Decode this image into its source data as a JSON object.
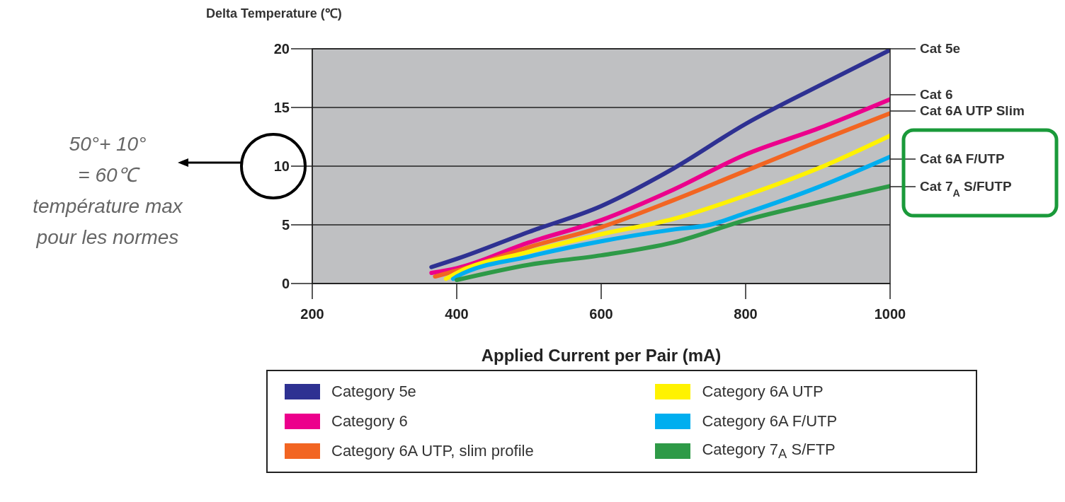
{
  "chart_data": {
    "type": "line",
    "xlabel": "Applied Current per Pair (mA)",
    "ylabel": "Delta Temperature (℃)",
    "xlim": [
      200,
      1000
    ],
    "xticks": [
      200,
      400,
      600,
      800,
      1000
    ],
    "ylim": [
      0,
      20
    ],
    "yticks": [
      0,
      5,
      10,
      15,
      20
    ],
    "grid": "y",
    "legend": "bottom",
    "marker": "none",
    "line_style": "solid",
    "series": [
      {
        "name": "Category 5e",
        "color": "#2e3192",
        "x": [
          365,
          400,
          500,
          600,
          700,
          800,
          900,
          1000
        ],
        "values": [
          1.4,
          2.1,
          4.4,
          6.6,
          9.8,
          13.6,
          16.8,
          19.9
        ]
      },
      {
        "name": "Category 6",
        "color": "#ec008c",
        "x": [
          365,
          400,
          500,
          600,
          700,
          800,
          900,
          1000
        ],
        "values": [
          0.9,
          1.3,
          3.5,
          5.4,
          8.0,
          11.0,
          13.2,
          15.7
        ]
      },
      {
        "name": "Category 6A UTP, slim profile",
        "color": "#f26522",
        "x": [
          370,
          400,
          500,
          600,
          700,
          800,
          900,
          1000
        ],
        "values": [
          0.6,
          1.1,
          3.1,
          4.8,
          7.1,
          9.6,
          12.1,
          14.5
        ]
      },
      {
        "name": "Category 6A UTP",
        "color": "#fff200",
        "x": [
          385,
          400,
          500,
          600,
          700,
          800,
          900,
          1000
        ],
        "values": [
          0.4,
          0.9,
          2.7,
          4.2,
          5.5,
          7.5,
          9.8,
          12.6
        ]
      },
      {
        "name": "Category 6A F/UTP",
        "color": "#00aeef",
        "x": [
          395,
          400,
          500,
          600,
          700,
          750,
          800,
          900,
          1000
        ],
        "values": [
          0.4,
          0.6,
          2.3,
          3.6,
          4.6,
          5.0,
          6.0,
          8.2,
          10.8
        ]
      },
      {
        "name": "Category 7$_{A}$ S/FTP",
        "color": "#2e9a47",
        "x": [
          400,
          500,
          600,
          700,
          800,
          900,
          1000
        ],
        "values": [
          0.3,
          1.6,
          2.4,
          3.5,
          5.4,
          6.9,
          8.3
        ]
      }
    ],
    "annotations": [
      "Cat 5e",
      "Cat 6",
      "Cat 6A UTP Slim",
      "Cat 6A F/UTP",
      "Cat 7$_{A}$ S/FUTP",
      "50°+ 10°\n= 60℃\ntempérature max\npour les normes"
    ]
  }
}
